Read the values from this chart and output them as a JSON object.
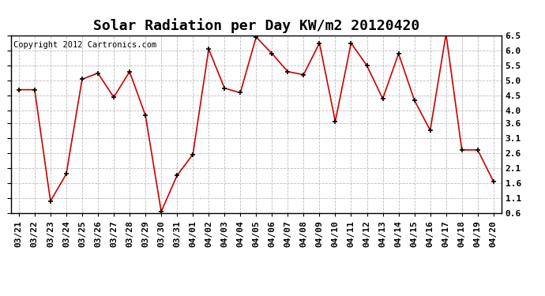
{
  "title": "Solar Radiation per Day KW/m2 20120420",
  "copyright": "Copyright 2012 Cartronics.com",
  "dates": [
    "03/21",
    "03/22",
    "03/23",
    "03/24",
    "03/25",
    "03/26",
    "03/27",
    "03/28",
    "03/29",
    "03/30",
    "03/31",
    "04/01",
    "04/02",
    "04/03",
    "04/04",
    "04/05",
    "04/06",
    "04/07",
    "04/08",
    "04/09",
    "04/10",
    "04/11",
    "04/12",
    "04/13",
    "04/14",
    "04/15",
    "04/16",
    "04/17",
    "04/18",
    "04/19",
    "04/20"
  ],
  "values": [
    4.7,
    4.7,
    1.0,
    1.9,
    5.05,
    5.25,
    4.45,
    5.3,
    3.85,
    0.65,
    1.85,
    2.55,
    6.05,
    4.75,
    4.6,
    6.45,
    5.9,
    5.3,
    5.2,
    6.25,
    3.65,
    6.25,
    5.5,
    4.4,
    5.9,
    4.35,
    3.35,
    6.55,
    2.7,
    2.7,
    1.65
  ],
  "line_color": "#cc0000",
  "marker_color": "#000000",
  "bg_color": "#ffffff",
  "grid_color": "#bbbbbb",
  "ylim": [
    0.6,
    6.5
  ],
  "yticks": [
    0.6,
    1.1,
    1.6,
    2.1,
    2.6,
    3.1,
    3.6,
    4.0,
    4.5,
    5.0,
    5.5,
    6.0,
    6.5
  ],
  "ytick_labels": [
    "0.6",
    "1.1",
    "1.6",
    "2.1",
    "2.6",
    "3.1",
    "3.6",
    "4.0",
    "4.5",
    "5.0",
    "5.5",
    "6.0",
    "6.5"
  ],
  "title_fontsize": 13,
  "tick_fontsize": 8,
  "copyright_fontsize": 7.5
}
